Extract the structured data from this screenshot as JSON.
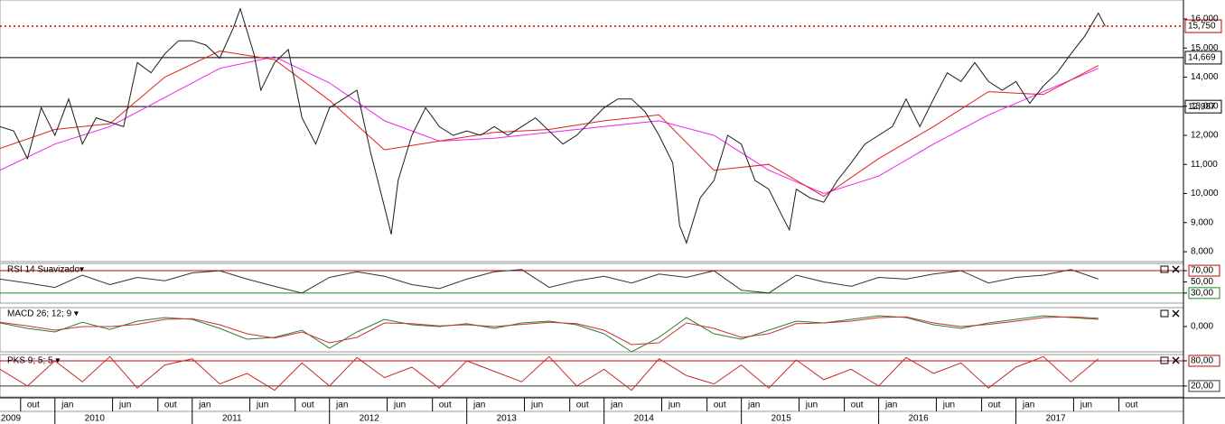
{
  "chart_data": [
    {
      "type": "line",
      "ylim": [
        7659,
        16651
      ],
      "yticks": [
        {
          "value": 8000,
          "label": "8,000"
        },
        {
          "value": 9000,
          "label": "9,000"
        },
        {
          "value": 10000,
          "label": "10,000"
        },
        {
          "value": 11000,
          "label": "11,000"
        },
        {
          "value": 12000,
          "label": "12,000"
        },
        {
          "value": 13000,
          "label": "13,000"
        },
        {
          "value": 14000,
          "label": "14,000"
        },
        {
          "value": 15000,
          "label": "15,000"
        },
        {
          "value": 16000,
          "label": "16,000"
        }
      ],
      "levels": [
        {
          "value": 15750,
          "label": "15,750",
          "color": "#cc0000",
          "style": "dotted",
          "label_color": "#000000"
        },
        {
          "value": 14669,
          "label": "14,669",
          "color": "#000000",
          "style": "solid",
          "label_color": "#cc0000"
        },
        {
          "value": 12987,
          "label": "12,987",
          "color": "#000000",
          "style": "solid",
          "label_color": "#cc0000"
        }
      ],
      "series": [
        {
          "color": "#ee22ee",
          "x": [
            2009.6,
            2010.0,
            2010.4,
            2010.8,
            2011.2,
            2011.6,
            2012.0,
            2012.4,
            2012.8,
            2013.2,
            2013.6,
            2014.0,
            2014.4,
            2014.8,
            2015.2,
            2015.6,
            2016.0,
            2016.4,
            2016.8,
            2017.2,
            2017.6
          ],
          "values": [
            10800,
            11700,
            12300,
            13300,
            14300,
            14700,
            13800,
            12500,
            11800,
            11900,
            12100,
            12300,
            12500,
            12000,
            10800,
            10000,
            10600,
            11700,
            12700,
            13500,
            14300
          ]
        },
        {
          "color": "#e02020",
          "x": [
            2009.6,
            2010.0,
            2010.4,
            2010.8,
            2011.2,
            2011.6,
            2012.0,
            2012.4,
            2012.8,
            2013.2,
            2013.6,
            2014.0,
            2014.4,
            2014.8,
            2015.2,
            2015.6,
            2016.0,
            2016.4,
            2016.8,
            2017.2,
            2017.6
          ],
          "values": [
            11550,
            12200,
            12400,
            14000,
            14900,
            14600,
            13200,
            11500,
            11800,
            12100,
            12200,
            12500,
            12700,
            10800,
            11000,
            9900,
            11200,
            12300,
            13500,
            13400,
            14400
          ]
        },
        {
          "color": "#1a1a1a",
          "x": [
            2009.6,
            2009.7,
            2009.8,
            2009.9,
            2010.0,
            2010.1,
            2010.2,
            2010.3,
            2010.4,
            2010.5,
            2010.6,
            2010.7,
            2010.8,
            2010.9,
            2011.0,
            2011.1,
            2011.2,
            2011.3,
            2011.35,
            2011.45,
            2011.5,
            2011.6,
            2011.7,
            2011.8,
            2011.9,
            2012.0,
            2012.1,
            2012.2,
            2012.3,
            2012.4,
            2012.45,
            2012.5,
            2012.6,
            2012.7,
            2012.8,
            2012.9,
            2013.0,
            2013.1,
            2013.2,
            2013.3,
            2013.4,
            2013.5,
            2013.6,
            2013.7,
            2013.8,
            2014.0,
            2014.1,
            2014.2,
            2014.3,
            2014.4,
            2014.5,
            2014.55,
            2014.6,
            2014.7,
            2014.8,
            2014.9,
            2015.0,
            2015.1,
            2015.2,
            2015.3,
            2015.35,
            2015.4,
            2015.5,
            2015.6,
            2015.7,
            2015.8,
            2015.9,
            2016.0,
            2016.1,
            2016.2,
            2016.3,
            2016.4,
            2016.5,
            2016.6,
            2016.7,
            2016.8,
            2016.9,
            2017.0,
            2017.1,
            2017.2,
            2017.3,
            2017.4,
            2017.5,
            2017.6,
            2017.65
          ],
          "values": [
            12300,
            12150,
            11200,
            12950,
            12000,
            13250,
            11700,
            12600,
            12450,
            12300,
            14500,
            14150,
            14800,
            15250,
            15250,
            15100,
            14650,
            15700,
            16350,
            14800,
            13550,
            14500,
            14950,
            12600,
            11700,
            12950,
            13250,
            13550,
            11400,
            9550,
            8600,
            10450,
            12000,
            12950,
            12300,
            12000,
            12150,
            12000,
            12300,
            12000,
            12300,
            12600,
            12150,
            11700,
            12000,
            12950,
            13250,
            13250,
            12800,
            12000,
            11050,
            8900,
            8300,
            9850,
            10450,
            12000,
            11700,
            10450,
            10150,
            9200,
            8750,
            10150,
            9850,
            9700,
            10450,
            11050,
            11700,
            12000,
            12300,
            13250,
            12300,
            13250,
            14150,
            13850,
            14500,
            13850,
            13550,
            13850,
            13100,
            13700,
            14150,
            14800,
            15400,
            16200,
            15750
          ]
        }
      ]
    },
    {
      "type": "line",
      "title": "RSI 14 Suavizado▾",
      "title_color": "#000000",
      "ylim": [
        12,
        83
      ],
      "yticks": [
        {
          "value": 70,
          "label": "70,00"
        },
        {
          "value": 50,
          "label": "50,00"
        },
        {
          "value": 30,
          "label": "30,00"
        }
      ],
      "levels": [
        {
          "value": 70,
          "color": "#cc0000"
        },
        {
          "value": 30,
          "color": "#1a8a1a"
        }
      ],
      "x": [
        2009.6,
        2009.8,
        2010.0,
        2010.2,
        2010.4,
        2010.6,
        2010.8,
        2011.0,
        2011.2,
        2011.4,
        2011.6,
        2011.8,
        2012.0,
        2012.2,
        2012.4,
        2012.6,
        2012.8,
        2013.0,
        2013.2,
        2013.4,
        2013.6,
        2013.8,
        2014.0,
        2014.2,
        2014.4,
        2014.6,
        2014.8,
        2015.0,
        2015.2,
        2015.4,
        2015.6,
        2015.8,
        2016.0,
        2016.2,
        2016.4,
        2016.6,
        2016.8,
        2017.0,
        2017.2,
        2017.4,
        2017.6
      ],
      "series": [
        {
          "color": "#333333",
          "values": [
            55,
            48,
            40,
            62,
            45,
            58,
            52,
            66,
            70,
            55,
            42,
            30,
            58,
            68,
            60,
            45,
            38,
            55,
            68,
            72,
            40,
            52,
            60,
            48,
            64,
            58,
            70,
            35,
            30,
            62,
            50,
            42,
            58,
            55,
            64,
            70,
            48,
            58,
            62,
            72,
            55
          ]
        }
      ]
    },
    {
      "type": "line",
      "title": "MACD 26; 12; 9 ▾",
      "title_color": "#1a7a1a",
      "ylim": [
        -700,
        525
      ],
      "yticks": [
        {
          "value": 0,
          "label": "0,000"
        }
      ],
      "x": [
        2009.6,
        2009.8,
        2010.0,
        2010.2,
        2010.4,
        2010.6,
        2010.8,
        2011.0,
        2011.2,
        2011.4,
        2011.6,
        2011.8,
        2012.0,
        2012.2,
        2012.4,
        2012.6,
        2012.8,
        2013.0,
        2013.2,
        2013.4,
        2013.6,
        2013.8,
        2014.0,
        2014.2,
        2014.4,
        2014.6,
        2014.8,
        2015.0,
        2015.2,
        2015.4,
        2015.6,
        2015.8,
        2016.0,
        2016.2,
        2016.4,
        2016.6,
        2016.8,
        2017.0,
        2017.2,
        2017.4,
        2017.6
      ],
      "series": [
        {
          "color": "#2e7d32",
          "values": [
            100,
            -50,
            -150,
            120,
            -80,
            150,
            250,
            200,
            -50,
            -350,
            -300,
            -100,
            -600,
            -150,
            200,
            50,
            0,
            80,
            -50,
            100,
            150,
            50,
            -200,
            -700,
            -300,
            250,
            -200,
            -350,
            -100,
            150,
            100,
            200,
            300,
            250,
            50,
            -50,
            100,
            200,
            300,
            250,
            200
          ]
        },
        {
          "color": "#d03030",
          "values": [
            120,
            20,
            -100,
            0,
            0,
            60,
            200,
            220,
            50,
            -200,
            -320,
            -150,
            -450,
            -300,
            100,
            80,
            20,
            50,
            0,
            60,
            120,
            80,
            -100,
            -500,
            -450,
            100,
            -50,
            -300,
            -200,
            80,
            100,
            150,
            250,
            270,
            100,
            0,
            60,
            150,
            250,
            270,
            230
          ]
        }
      ]
    },
    {
      "type": "line",
      "title": "PKS 9; 5; 5 ▾",
      "title_color": "#000000",
      "ylim": [
        -6,
        95
      ],
      "yticks": [
        {
          "value": 80,
          "label": "80,00"
        },
        {
          "value": 20,
          "label": "20,00"
        }
      ],
      "levels": [
        {
          "value": 80,
          "color": "#cc0000"
        },
        {
          "value": 20,
          "color": "#333333"
        }
      ],
      "x": [
        2009.6,
        2009.8,
        2010.0,
        2010.2,
        2010.4,
        2010.6,
        2010.8,
        2011.0,
        2011.2,
        2011.4,
        2011.6,
        2011.8,
        2012.0,
        2012.2,
        2012.4,
        2012.6,
        2012.8,
        2013.0,
        2013.2,
        2013.4,
        2013.6,
        2013.8,
        2014.0,
        2014.2,
        2014.4,
        2014.6,
        2014.8,
        2015.0,
        2015.2,
        2015.4,
        2015.6,
        2015.8,
        2016.0,
        2016.2,
        2016.4,
        2016.6,
        2016.8,
        2017.0,
        2017.2,
        2017.4,
        2017.6
      ],
      "series": [
        {
          "color": "#c62828",
          "values": [
            60,
            20,
            80,
            30,
            90,
            15,
            70,
            85,
            25,
            50,
            10,
            75,
            20,
            88,
            40,
            65,
            15,
            80,
            55,
            30,
            90,
            20,
            60,
            10,
            85,
            45,
            25,
            70,
            15,
            82,
            35,
            60,
            20,
            88,
            50,
            75,
            15,
            65,
            90,
            30,
            85
          ]
        }
      ],
      "xlim": [
        2009.6,
        2018.22
      ],
      "xticks": [
        {
          "value": 2009.75,
          "label": "out"
        },
        {
          "value": 2010.0,
          "label": "jan"
        },
        {
          "value": 2010.42,
          "label": "jun"
        },
        {
          "value": 2010.75,
          "label": "out"
        },
        {
          "value": 2011.0,
          "label": "jan"
        },
        {
          "value": 2011.42,
          "label": "jun"
        },
        {
          "value": 2011.75,
          "label": "out"
        },
        {
          "value": 2012.0,
          "label": "jan"
        },
        {
          "value": 2012.42,
          "label": "jun"
        },
        {
          "value": 2012.75,
          "label": "out"
        },
        {
          "value": 2013.0,
          "label": "jan"
        },
        {
          "value": 2013.42,
          "label": "jun"
        },
        {
          "value": 2013.75,
          "label": "out"
        },
        {
          "value": 2014.0,
          "label": "jan"
        },
        {
          "value": 2014.42,
          "label": "jun"
        },
        {
          "value": 2014.75,
          "label": "out"
        },
        {
          "value": 2015.0,
          "label": "jan"
        },
        {
          "value": 2015.42,
          "label": "jun"
        },
        {
          "value": 2015.75,
          "label": "out"
        },
        {
          "value": 2016.0,
          "label": "jan"
        },
        {
          "value": 2016.42,
          "label": "jun"
        },
        {
          "value": 2016.75,
          "label": "out"
        },
        {
          "value": 2017.0,
          "label": "jan"
        },
        {
          "value": 2017.42,
          "label": "jun"
        },
        {
          "value": 2017.75,
          "label": "out"
        }
      ],
      "year_ticks": [
        2009,
        2010,
        2011,
        2012,
        2013,
        2014,
        2015,
        2016,
        2017
      ]
    }
  ]
}
